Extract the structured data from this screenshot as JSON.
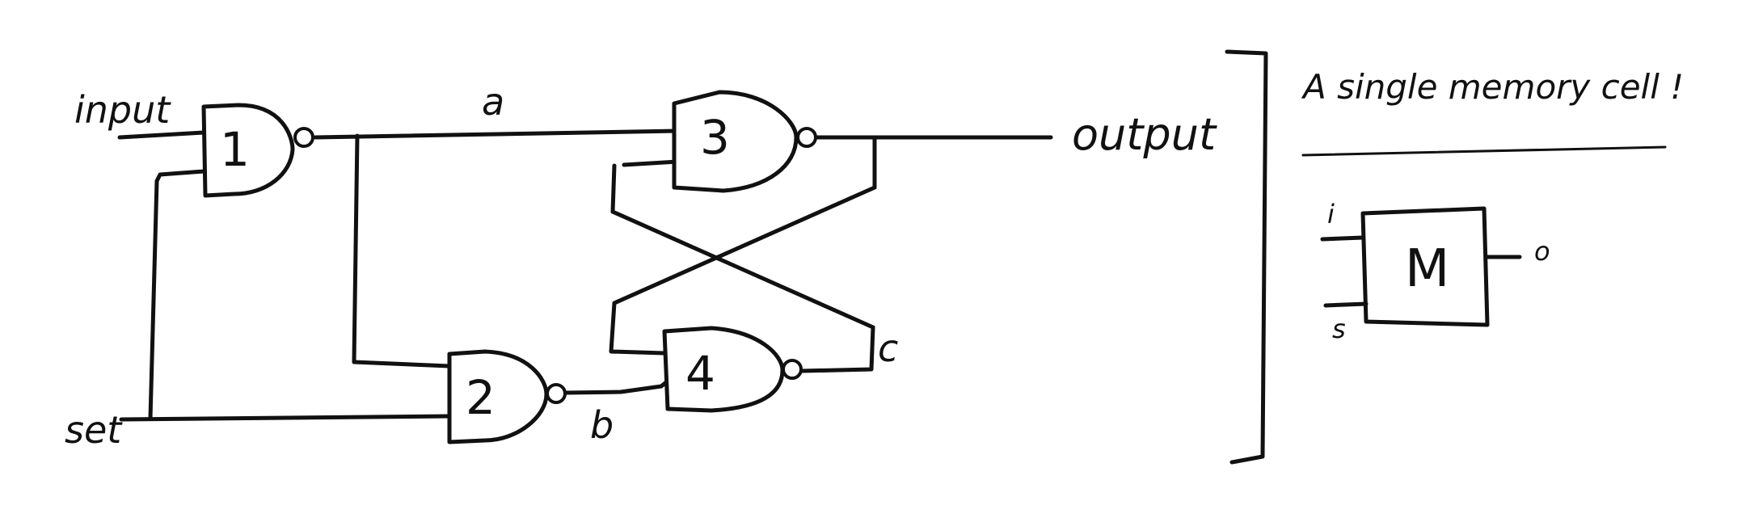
{
  "diagram": {
    "signals": {
      "input": "input",
      "set": "set",
      "output": "output",
      "a": "a",
      "b": "b",
      "c": "c"
    },
    "gates": [
      {
        "id": "1",
        "label": "1",
        "type": "NAND"
      },
      {
        "id": "2",
        "label": "2",
        "type": "NAND"
      },
      {
        "id": "3",
        "label": "3",
        "type": "NAND"
      },
      {
        "id": "4",
        "label": "4",
        "type": "NAND"
      }
    ],
    "summary": {
      "title": "A single memory cell !",
      "box_label": "M",
      "input_i": "i",
      "input_s": "s",
      "output_o": "o"
    }
  }
}
